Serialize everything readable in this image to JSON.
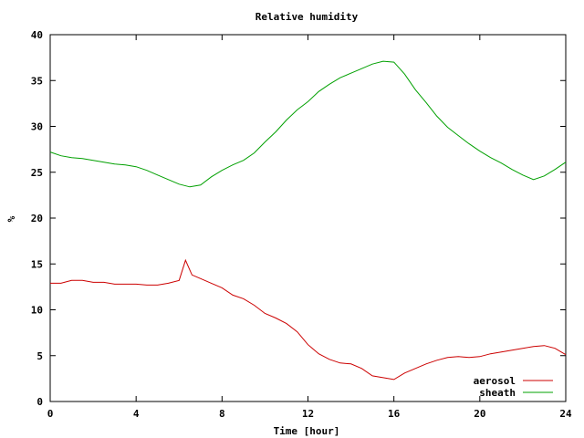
{
  "chart_data": {
    "type": "line",
    "title": "Relative humidity",
    "xlabel": "Time [hour]",
    "ylabel": "%",
    "xlim": [
      0,
      24
    ],
    "ylim": [
      0,
      40
    ],
    "x_ticks": [
      "0",
      "4",
      "8",
      "12",
      "16",
      "20",
      "24"
    ],
    "y_ticks": [
      "0",
      "5",
      "10",
      "15",
      "20",
      "25",
      "30",
      "35",
      "40"
    ],
    "grid": false,
    "legend_position": "bottom-right",
    "series": [
      {
        "name": "aerosol",
        "color": "#cc0000",
        "x": [
          0,
          0.5,
          1,
          1.5,
          2,
          2.5,
          3,
          3.5,
          4,
          4.5,
          5,
          5.5,
          6,
          6.3,
          6.6,
          7,
          7.5,
          8,
          8.5,
          9,
          9.5,
          10,
          10.5,
          11,
          11.5,
          12,
          12.5,
          13,
          13.5,
          14,
          14.5,
          15,
          15.5,
          16,
          16.5,
          17,
          17.5,
          18,
          18.5,
          19,
          19.5,
          20,
          20.5,
          21,
          21.5,
          22,
          22.5,
          23,
          23.5,
          24
        ],
        "y": [
          12.9,
          12.9,
          13.2,
          13.2,
          13.0,
          13.0,
          12.8,
          12.8,
          12.8,
          12.7,
          12.7,
          12.9,
          13.2,
          15.4,
          13.8,
          13.4,
          12.9,
          12.4,
          11.6,
          11.2,
          10.5,
          9.6,
          9.1,
          8.5,
          7.6,
          6.2,
          5.2,
          4.6,
          4.2,
          4.1,
          3.6,
          2.8,
          2.6,
          2.4,
          3.1,
          3.6,
          4.1,
          4.5,
          4.8,
          4.9,
          4.8,
          4.9,
          5.2,
          5.4,
          5.6,
          5.8,
          6.0,
          6.1,
          5.8,
          5.1
        ]
      },
      {
        "name": "sheath",
        "color": "#00a000",
        "x": [
          0,
          0.5,
          1,
          1.5,
          2,
          2.5,
          3,
          3.5,
          4,
          4.5,
          5,
          5.5,
          6,
          6.5,
          7,
          7.5,
          8,
          8.5,
          9,
          9.5,
          10,
          10.5,
          11,
          11.5,
          12,
          12.5,
          13,
          13.5,
          14,
          14.5,
          15,
          15.5,
          16,
          16.5,
          17,
          17.5,
          18,
          18.5,
          19,
          19.5,
          20,
          20.5,
          21,
          21.5,
          22,
          22.5,
          23,
          23.5,
          24
        ],
        "y": [
          27.2,
          26.8,
          26.6,
          26.5,
          26.3,
          26.1,
          25.9,
          25.8,
          25.6,
          25.2,
          24.7,
          24.2,
          23.7,
          23.4,
          23.6,
          24.5,
          25.2,
          25.8,
          26.3,
          27.1,
          28.3,
          29.4,
          30.7,
          31.8,
          32.7,
          33.8,
          34.6,
          35.3,
          35.8,
          36.3,
          36.8,
          37.1,
          37.0,
          35.7,
          34.0,
          32.6,
          31.1,
          29.9,
          29.0,
          28.1,
          27.3,
          26.6,
          26.0,
          25.3,
          24.7,
          24.2,
          24.6,
          25.3,
          26.1
        ]
      }
    ]
  }
}
